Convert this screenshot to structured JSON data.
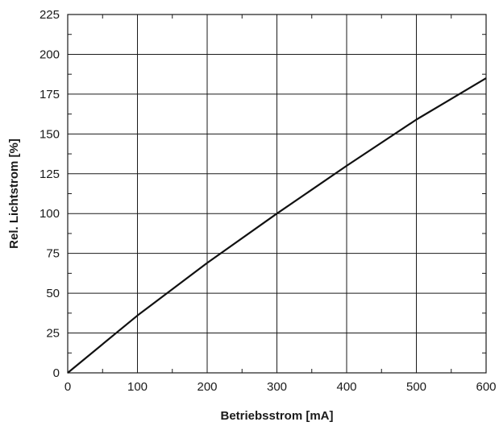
{
  "chart_data": {
    "type": "line",
    "xlabel": "Betriebsstrom [mA]",
    "ylabel": "Rel. Lichtstrom [%]",
    "xlim": [
      0,
      600
    ],
    "ylim": [
      0,
      225
    ],
    "x_ticks": [
      0,
      100,
      200,
      300,
      400,
      500,
      600
    ],
    "y_ticks": [
      0,
      25,
      50,
      75,
      100,
      125,
      150,
      175,
      200,
      225
    ],
    "x_tick_labels": [
      "0",
      "100",
      "200",
      "300",
      "400",
      "500",
      "600"
    ],
    "y_tick_labels": [
      "0",
      "25",
      "50",
      "75",
      "100",
      "125",
      "150",
      "175",
      "200",
      "225"
    ],
    "grid": true,
    "series": [
      {
        "x": [
          0,
          100,
          200,
          300,
          400,
          500,
          600
        ],
        "values": [
          0,
          36,
          69,
          100,
          130,
          159,
          185
        ]
      }
    ]
  }
}
